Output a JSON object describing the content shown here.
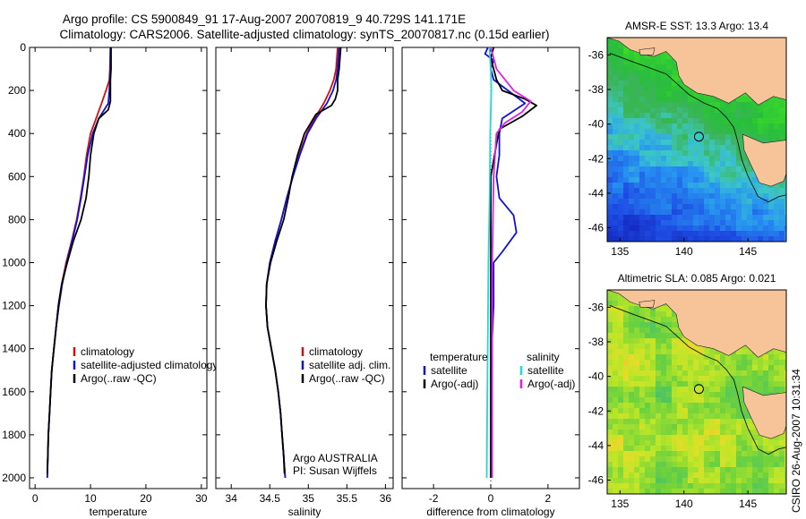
{
  "header": {
    "line1": "Argo profile: CS 5900849_91 17-Aug-2007 20070819_9 40.729S 141.171E",
    "line2": "Climatology: CARS2006. Satellite-adjusted climatology: synTS_20070817.nc (0.15d earlier)"
  },
  "credit": "CSIRO 26-Aug-2007 10:31:34",
  "colors": {
    "clim": "#d01010",
    "sat": "#1010d8",
    "argo": "#000000",
    "satCyan": "#20d8d8",
    "argoMagenta": "#e020e0",
    "land": "#f7c49a"
  },
  "depth_axis": {
    "ylim": [
      0,
      2050
    ],
    "ticks": [
      "0",
      "200",
      "400",
      "600",
      "800",
      "1000",
      "1200",
      "1400",
      "1600",
      "1800",
      "2000"
    ]
  },
  "chart_data": [
    {
      "type": "line",
      "xlabel": "temperature",
      "xlim": [
        -1,
        31
      ],
      "xticks": [
        "0",
        "10",
        "20",
        "30"
      ],
      "legend": {
        "items": [
          "climatology",
          "satellite-adjusted climatology",
          "Argo(..raw -QC)"
        ]
      },
      "series": [
        {
          "name": "climatology",
          "color": "clim",
          "points": [
            [
              13.6,
              0
            ],
            [
              13.5,
              100
            ],
            [
              13.4,
              150
            ],
            [
              12.8,
              200
            ],
            [
              12.0,
              260
            ],
            [
              11.0,
              330
            ],
            [
              10.0,
              400
            ],
            [
              9.3,
              500
            ],
            [
              8.8,
              600
            ],
            [
              8.2,
              700
            ],
            [
              7.5,
              800
            ],
            [
              6.6,
              900
            ],
            [
              5.6,
              1000
            ],
            [
              4.8,
              1100
            ],
            [
              4.2,
              1200
            ],
            [
              3.8,
              1300
            ],
            [
              3.4,
              1400
            ],
            [
              3.0,
              1500
            ],
            [
              2.8,
              1600
            ],
            [
              2.6,
              1700
            ],
            [
              2.4,
              1800
            ],
            [
              2.3,
              1900
            ],
            [
              2.2,
              2000
            ]
          ]
        },
        {
          "name": "satellite-adjusted climatology",
          "color": "sat",
          "points": [
            [
              13.6,
              0
            ],
            [
              13.6,
              100
            ],
            [
              13.5,
              150
            ],
            [
              13.4,
              200
            ],
            [
              13.2,
              260
            ],
            [
              11.5,
              330
            ],
            [
              10.4,
              400
            ],
            [
              9.5,
              500
            ],
            [
              8.9,
              600
            ],
            [
              8.3,
              700
            ],
            [
              7.6,
              800
            ],
            [
              6.7,
              900
            ],
            [
              5.7,
              1000
            ],
            [
              4.9,
              1100
            ],
            [
              4.3,
              1200
            ],
            [
              3.8,
              1300
            ],
            [
              3.4,
              1400
            ],
            [
              3.0,
              1500
            ],
            [
              2.8,
              1600
            ],
            [
              2.6,
              1700
            ],
            [
              2.4,
              1800
            ],
            [
              2.3,
              1900
            ],
            [
              2.2,
              2000
            ]
          ]
        },
        {
          "name": "Argo(..raw -QC)",
          "color": "argo",
          "points": [
            [
              13.7,
              0
            ],
            [
              13.7,
              100
            ],
            [
              13.6,
              150
            ],
            [
              13.6,
              200
            ],
            [
              13.6,
              250
            ],
            [
              13.2,
              290
            ],
            [
              11.5,
              330
            ],
            [
              10.6,
              400
            ],
            [
              10.0,
              500
            ],
            [
              9.7,
              600
            ],
            [
              9.2,
              700
            ],
            [
              8.3,
              800
            ],
            [
              6.9,
              900
            ],
            [
              5.8,
              1000
            ],
            [
              4.8,
              1100
            ],
            [
              4.2,
              1200
            ],
            [
              3.8,
              1300
            ],
            [
              3.4,
              1400
            ],
            [
              3.0,
              1500
            ],
            [
              2.8,
              1600
            ],
            [
              2.6,
              1700
            ],
            [
              2.4,
              1800
            ],
            [
              2.3,
              1900
            ],
            [
              2.2,
              1980
            ]
          ]
        }
      ]
    },
    {
      "type": "line",
      "xlabel": "salinity",
      "xlim": [
        33.8,
        36.1
      ],
      "xticks": [
        "34",
        "34.5",
        "35",
        "35.5",
        "36"
      ],
      "legend": {
        "items": [
          "climatology",
          "satellite adj. clim.",
          "Argo(..raw -QC)"
        ]
      },
      "annotation": [
        "Argo AUSTRALIA",
        "PI: Susan Wijffels"
      ],
      "series": [
        {
          "name": "climatology",
          "color": "clim",
          "points": [
            [
              35.38,
              0
            ],
            [
              35.36,
              100
            ],
            [
              35.33,
              150
            ],
            [
              35.28,
              200
            ],
            [
              35.2,
              260
            ],
            [
              35.08,
              330
            ],
            [
              34.98,
              400
            ],
            [
              34.88,
              500
            ],
            [
              34.8,
              600
            ],
            [
              34.72,
              700
            ],
            [
              34.65,
              800
            ],
            [
              34.57,
              900
            ],
            [
              34.5,
              1000
            ],
            [
              34.46,
              1100
            ],
            [
              34.45,
              1200
            ],
            [
              34.47,
              1300
            ],
            [
              34.52,
              1400
            ],
            [
              34.57,
              1500
            ],
            [
              34.61,
              1600
            ],
            [
              34.64,
              1700
            ],
            [
              34.66,
              1800
            ],
            [
              34.68,
              1900
            ],
            [
              34.7,
              2000
            ]
          ]
        },
        {
          "name": "satellite adj. clim.",
          "color": "sat",
          "points": [
            [
              35.4,
              0
            ],
            [
              35.38,
              100
            ],
            [
              35.36,
              150
            ],
            [
              35.32,
              200
            ],
            [
              35.24,
              260
            ],
            [
              35.1,
              330
            ],
            [
              34.99,
              400
            ],
            [
              34.89,
              500
            ],
            [
              34.8,
              600
            ],
            [
              34.72,
              700
            ],
            [
              34.65,
              800
            ],
            [
              34.57,
              900
            ],
            [
              34.5,
              1000
            ],
            [
              34.46,
              1100
            ],
            [
              34.45,
              1200
            ],
            [
              34.47,
              1300
            ],
            [
              34.52,
              1400
            ],
            [
              34.57,
              1500
            ],
            [
              34.61,
              1600
            ],
            [
              34.64,
              1700
            ],
            [
              34.66,
              1800
            ],
            [
              34.68,
              1900
            ],
            [
              34.7,
              2000
            ]
          ]
        },
        {
          "name": "Argo(..raw -QC)",
          "color": "argo",
          "points": [
            [
              35.42,
              0
            ],
            [
              35.4,
              100
            ],
            [
              35.38,
              150
            ],
            [
              35.38,
              200
            ],
            [
              35.35,
              240
            ],
            [
              35.3,
              270
            ],
            [
              35.1,
              310
            ],
            [
              34.95,
              400
            ],
            [
              34.86,
              500
            ],
            [
              34.79,
              600
            ],
            [
              34.74,
              700
            ],
            [
              34.68,
              800
            ],
            [
              34.59,
              900
            ],
            [
              34.51,
              1000
            ],
            [
              34.46,
              1100
            ],
            [
              34.45,
              1200
            ],
            [
              34.47,
              1300
            ],
            [
              34.52,
              1400
            ],
            [
              34.57,
              1500
            ],
            [
              34.61,
              1600
            ],
            [
              34.64,
              1700
            ],
            [
              34.66,
              1800
            ],
            [
              34.68,
              1900
            ],
            [
              34.69,
              1980
            ]
          ]
        }
      ]
    },
    {
      "type": "line",
      "xlabel": "difference from climatology",
      "xlim": [
        -3.1,
        3.1
      ],
      "xticks": [
        "-2",
        "0",
        "2"
      ],
      "legend": {
        "groups": [
          {
            "title": "temperature",
            "items": [
              "satellite",
              "Argo(-adj)"
            ]
          },
          {
            "title": "salinity",
            "items": [
              "satellite",
              "Argo(-adj)"
            ]
          }
        ]
      },
      "series": [
        {
          "name": "temperature satellite",
          "color": "sat",
          "points": [
            [
              -0.1,
              0
            ],
            [
              -0.2,
              30
            ],
            [
              0.1,
              60
            ],
            [
              0.0,
              100
            ],
            [
              0.1,
              150
            ],
            [
              0.6,
              200
            ],
            [
              1.2,
              260
            ],
            [
              0.4,
              330
            ],
            [
              0.3,
              400
            ],
            [
              0.3,
              500
            ],
            [
              0.2,
              600
            ],
            [
              0.3,
              700
            ],
            [
              0.8,
              780
            ],
            [
              0.9,
              860
            ],
            [
              0.4,
              950
            ],
            [
              0.1,
              1000
            ],
            [
              0.1,
              1200
            ],
            [
              0.0,
              1500
            ],
            [
              0.0,
              1800
            ],
            [
              0.0,
              2000
            ]
          ]
        },
        {
          "name": "temperature Argo(-adj)",
          "color": "argo",
          "points": [
            [
              0.1,
              0
            ],
            [
              0.0,
              50
            ],
            [
              0.1,
              100
            ],
            [
              0.2,
              150
            ],
            [
              0.4,
              200
            ],
            [
              1.2,
              240
            ],
            [
              1.6,
              270
            ],
            [
              1.1,
              320
            ],
            [
              0.3,
              380
            ],
            [
              0.2,
              450
            ],
            [
              0.0,
              600
            ],
            [
              0.0,
              1000
            ],
            [
              0.0,
              1500
            ],
            [
              0.0,
              2000
            ]
          ]
        },
        {
          "name": "salinity satellite",
          "color": "satCyan",
          "points": [
            [
              -0.05,
              0
            ],
            [
              0.0,
              100
            ],
            [
              0.02,
              200
            ],
            [
              -0.02,
              400
            ],
            [
              -0.04,
              700
            ],
            [
              -0.08,
              1000
            ],
            [
              -0.1,
              1300
            ],
            [
              -0.12,
              1600
            ],
            [
              -0.14,
              2000
            ]
          ]
        },
        {
          "name": "salinity Argo(-adj)",
          "color": "argoMagenta",
          "points": [
            [
              0.0,
              0
            ],
            [
              0.2,
              100
            ],
            [
              0.8,
              200
            ],
            [
              1.4,
              250
            ],
            [
              1.1,
              300
            ],
            [
              0.5,
              350
            ],
            [
              0.2,
              400
            ],
            [
              0.1,
              600
            ],
            [
              0.05,
              1000
            ],
            [
              0.05,
              2000
            ]
          ]
        }
      ]
    }
  ],
  "maps": [
    {
      "title": "AMSR-E SST: 13.3 Argo: 13.4",
      "xticks": [
        "135",
        "140",
        "145"
      ],
      "yticks": [
        "-36",
        "-38",
        "-40",
        "-42",
        "-44",
        "-46"
      ],
      "float_position": [
        141.17,
        -40.73
      ],
      "scheme": "sst"
    },
    {
      "title": "Altimetric SLA: 0.085 Argo: 0.021",
      "xticks": [
        "135",
        "140",
        "145"
      ],
      "yticks": [
        "-36",
        "-38",
        "-40",
        "-42",
        "-44",
        "-46"
      ],
      "float_position": [
        141.17,
        -40.73
      ],
      "scheme": "sla"
    }
  ]
}
